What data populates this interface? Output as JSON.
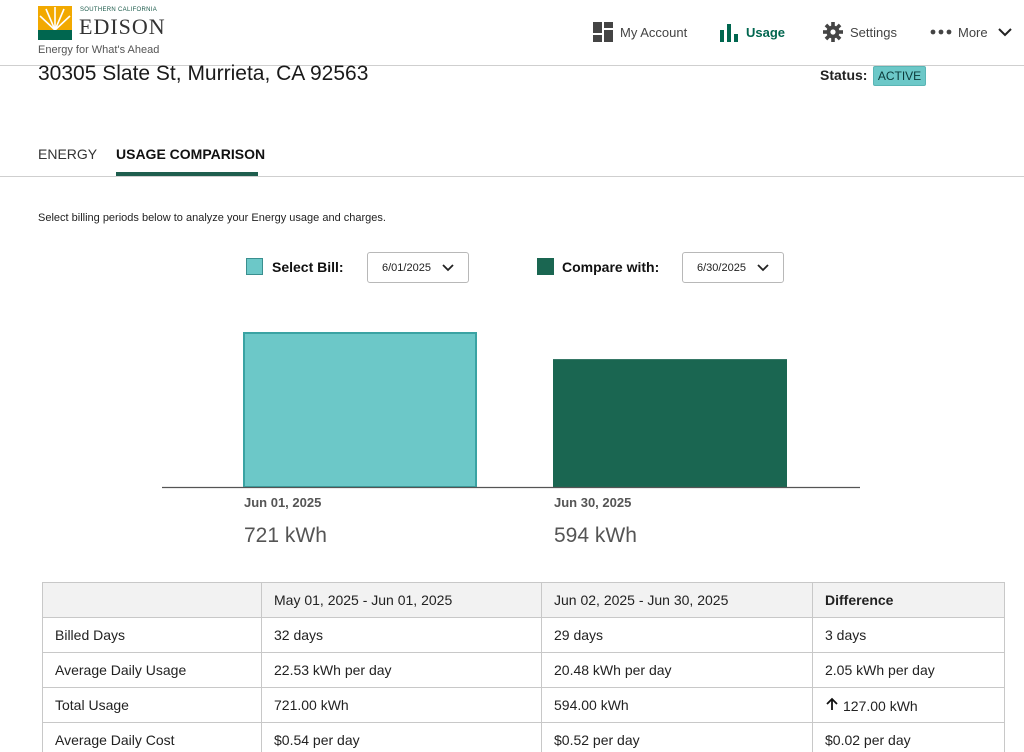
{
  "header": {
    "logo": {
      "small_text": "SOUTHERN CALIFORNIA",
      "brand": "EDISON",
      "tagline": "Energy for What's Ahead"
    },
    "nav": [
      {
        "label": "My Account",
        "icon": "dashboard-icon"
      },
      {
        "label": "Usage",
        "icon": "bar-chart-icon"
      },
      {
        "label": "Settings",
        "icon": "gear-icon"
      },
      {
        "label": "More",
        "icon": "more-dots-icon"
      }
    ]
  },
  "account": {
    "address": "30305 Slate St, Murrieta, CA 92563",
    "status_label": "Status:",
    "status_value": "ACTIVE"
  },
  "tabs": [
    {
      "label": "ENERGY",
      "active": false
    },
    {
      "label": "USAGE COMPARISON",
      "active": true
    }
  ],
  "instructions": "Select billing periods below to analyze your Energy usage and charges.",
  "selectors": {
    "select_bill_label": "Select Bill:",
    "select_bill_value": "6/01/2025",
    "compare_label": "Compare with:",
    "compare_value": "6/30/2025"
  },
  "colors": {
    "select_bill": "#6cc8c8",
    "compare": "#1a6651",
    "brand_green": "#00664f",
    "brand_gold": "#f2a900"
  },
  "chart_data": {
    "type": "bar",
    "categories": [
      "Jun 01, 2025",
      "Jun 30, 2025"
    ],
    "values": [
      721,
      594
    ],
    "value_labels": [
      "721 kWh",
      "594 kWh"
    ],
    "unit": "kWh",
    "title": "",
    "xlabel": "",
    "ylabel": "",
    "ylim": [
      0,
      721
    ],
    "grid": false
  },
  "table": {
    "headers": [
      "",
      "May 01, 2025 - Jun 01, 2025",
      "Jun 02, 2025 - Jun 30, 2025",
      "Difference"
    ],
    "rows": [
      {
        "label": "Billed Days",
        "a": "32 days",
        "b": "29 days",
        "diff": "3 days",
        "up": false
      },
      {
        "label": "Average Daily Usage",
        "a": "22.53 kWh per day",
        "b": "20.48 kWh per day",
        "diff": "2.05 kWh per day",
        "up": false
      },
      {
        "label": "Total Usage",
        "a": "721.00 kWh",
        "b": "594.00 kWh",
        "diff": "127.00 kWh",
        "up": true
      },
      {
        "label": "Average Daily Cost",
        "a": "$0.54 per day",
        "b": "$0.52 per day",
        "diff": "$0.02 per day",
        "up": false
      }
    ]
  }
}
